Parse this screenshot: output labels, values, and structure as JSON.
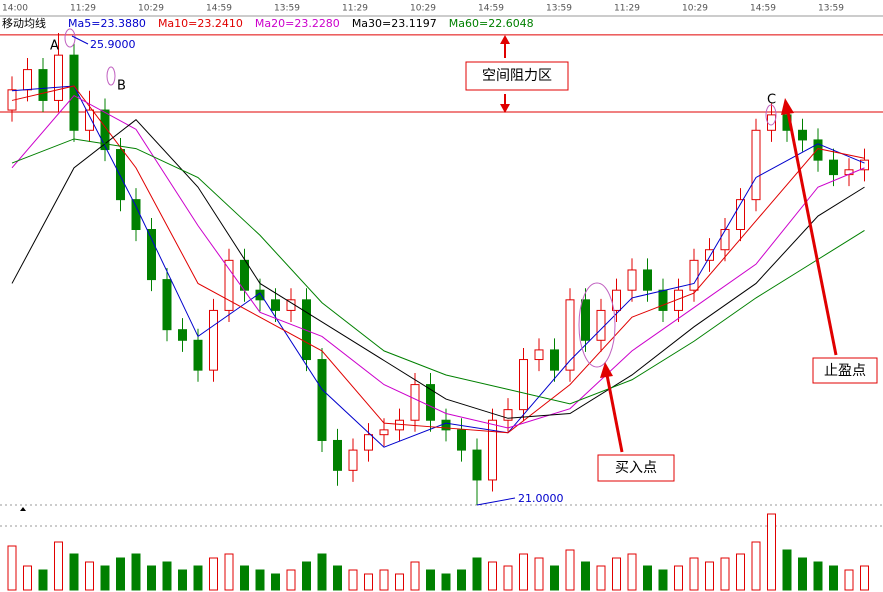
{
  "chart_data": {
    "type": "candlestick",
    "title": "移动均线",
    "time_labels": [
      "14:00",
      "11:29",
      "10:29",
      "14:59",
      "13:59",
      "11:29",
      "10:29",
      "14:59",
      "13:59",
      "11:29",
      "10:29",
      "14:59",
      "13:59"
    ],
    "open": [
      25.1,
      25.31,
      25.52,
      25.2,
      25.67,
      24.89,
      25.1,
      24.69,
      24.17,
      23.86,
      23.34,
      22.82,
      22.71,
      22.4,
      23.02,
      23.54,
      23.23,
      23.13,
      23.02,
      23.13,
      22.51,
      21.67,
      21.36,
      21.57,
      21.73,
      21.78,
      21.88,
      22.25,
      21.88,
      21.78,
      21.57,
      21.26,
      21.88,
      21.99,
      22.51,
      22.61,
      22.4,
      23.13,
      22.71,
      23.02,
      23.23,
      23.44,
      23.23,
      23.02,
      23.23,
      23.54,
      23.65,
      23.86,
      24.17,
      24.89,
      25.05,
      24.89,
      24.79,
      24.58,
      24.43,
      24.48
    ],
    "high": [
      25.45,
      25.64,
      25.64,
      25.9,
      25.79,
      25.3,
      25.22,
      24.81,
      24.29,
      23.98,
      23.46,
      22.94,
      22.83,
      23.14,
      23.66,
      23.66,
      23.35,
      23.25,
      23.25,
      23.25,
      22.63,
      21.79,
      21.69,
      21.85,
      21.9,
      22.0,
      22.37,
      22.37,
      22.0,
      21.9,
      21.69,
      22.0,
      22.11,
      22.63,
      22.73,
      22.73,
      23.25,
      23.25,
      23.14,
      23.35,
      23.56,
      23.56,
      23.35,
      23.35,
      23.66,
      23.77,
      23.98,
      24.29,
      25.01,
      25.17,
      25.17,
      25.01,
      24.91,
      24.7,
      24.6,
      24.7
    ],
    "low": [
      24.98,
      25.19,
      25.08,
      25.08,
      24.77,
      24.77,
      24.57,
      24.05,
      23.74,
      23.22,
      22.7,
      22.59,
      22.28,
      22.28,
      22.9,
      23.11,
      23.01,
      22.9,
      22.9,
      22.39,
      21.55,
      21.2,
      21.24,
      21.45,
      21.61,
      21.66,
      21.76,
      21.76,
      21.66,
      21.45,
      21.0,
      21.14,
      21.76,
      21.87,
      22.39,
      22.28,
      22.28,
      22.59,
      22.59,
      22.9,
      23.11,
      23.11,
      22.9,
      22.9,
      23.11,
      23.42,
      23.53,
      23.74,
      24.05,
      24.77,
      24.77,
      24.67,
      24.46,
      24.31,
      24.31,
      24.36
    ],
    "close": [
      25.31,
      25.52,
      25.2,
      25.67,
      24.89,
      25.1,
      24.69,
      24.17,
      23.86,
      23.34,
      22.82,
      22.71,
      22.4,
      23.02,
      23.54,
      23.23,
      23.13,
      23.02,
      23.13,
      22.51,
      21.67,
      21.36,
      21.57,
      21.73,
      21.78,
      21.88,
      22.25,
      21.88,
      21.78,
      21.57,
      21.26,
      21.88,
      21.99,
      22.51,
      22.61,
      22.4,
      23.13,
      22.71,
      23.02,
      23.23,
      23.44,
      23.23,
      23.02,
      23.23,
      23.54,
      23.65,
      23.86,
      24.17,
      24.89,
      25.05,
      24.89,
      24.79,
      24.58,
      24.43,
      24.48,
      24.58
    ],
    "volume": [
      55,
      30,
      25,
      60,
      45,
      35,
      30,
      40,
      45,
      30,
      35,
      25,
      30,
      40,
      45,
      30,
      25,
      20,
      25,
      35,
      45,
      30,
      25,
      20,
      25,
      20,
      35,
      25,
      20,
      25,
      40,
      35,
      30,
      45,
      40,
      30,
      50,
      35,
      30,
      40,
      45,
      30,
      25,
      30,
      40,
      35,
      40,
      45,
      60,
      95,
      50,
      40,
      35,
      30,
      25,
      30
    ],
    "ylim": [
      21.0,
      25.9
    ],
    "vlim": [
      0,
      100
    ],
    "up_color": "#e00000",
    "down_color": "#008000",
    "ma_x": [
      0,
      4,
      8,
      12,
      16,
      20,
      24,
      28,
      32,
      36,
      40,
      44,
      48,
      52,
      55
    ],
    "series": [
      {
        "name": "Ma5=23.3880",
        "color": "#0000cc",
        "values": [
          25.3,
          25.35,
          24.1,
          22.75,
          23.2,
          22.2,
          21.6,
          21.85,
          21.75,
          22.5,
          23.15,
          23.3,
          24.4,
          24.75,
          24.55
        ]
      },
      {
        "name": "Ma10=23.2410",
        "color": "#e00000",
        "values": [
          25.2,
          25.35,
          24.5,
          23.3,
          22.95,
          22.6,
          21.85,
          21.8,
          21.75,
          22.25,
          22.95,
          23.2,
          23.95,
          24.7,
          24.6
        ]
      },
      {
        "name": "Ma20=23.2280",
        "color": "#cc00cc",
        "values": [
          24.5,
          25.25,
          24.9,
          23.9,
          23.0,
          22.75,
          22.25,
          21.95,
          21.8,
          22.0,
          22.6,
          23.05,
          23.5,
          24.3,
          24.5
        ]
      },
      {
        "name": "Ma30=23.1197",
        "color": "#000000",
        "values": [
          23.3,
          24.5,
          25.0,
          24.3,
          23.3,
          22.9,
          22.5,
          22.1,
          21.9,
          21.95,
          22.35,
          22.85,
          23.3,
          24.0,
          24.3
        ]
      },
      {
        "name": "Ma60=22.6048",
        "color": "#008000",
        "values": [
          24.55,
          24.8,
          24.7,
          24.4,
          23.8,
          23.1,
          22.6,
          22.35,
          22.2,
          22.05,
          22.3,
          22.7,
          23.15,
          23.55,
          23.85
        ]
      }
    ],
    "resistance_lines": [
      25.88,
      25.08
    ],
    "resistance_color": "#e00000",
    "annotations": {
      "a": "A",
      "b": "B",
      "c": "C",
      "high_label": "25.9000",
      "low_label": "21.0000",
      "zone": "空间阻力区",
      "buy": "买入点",
      "take_profit": "止盈点"
    }
  }
}
